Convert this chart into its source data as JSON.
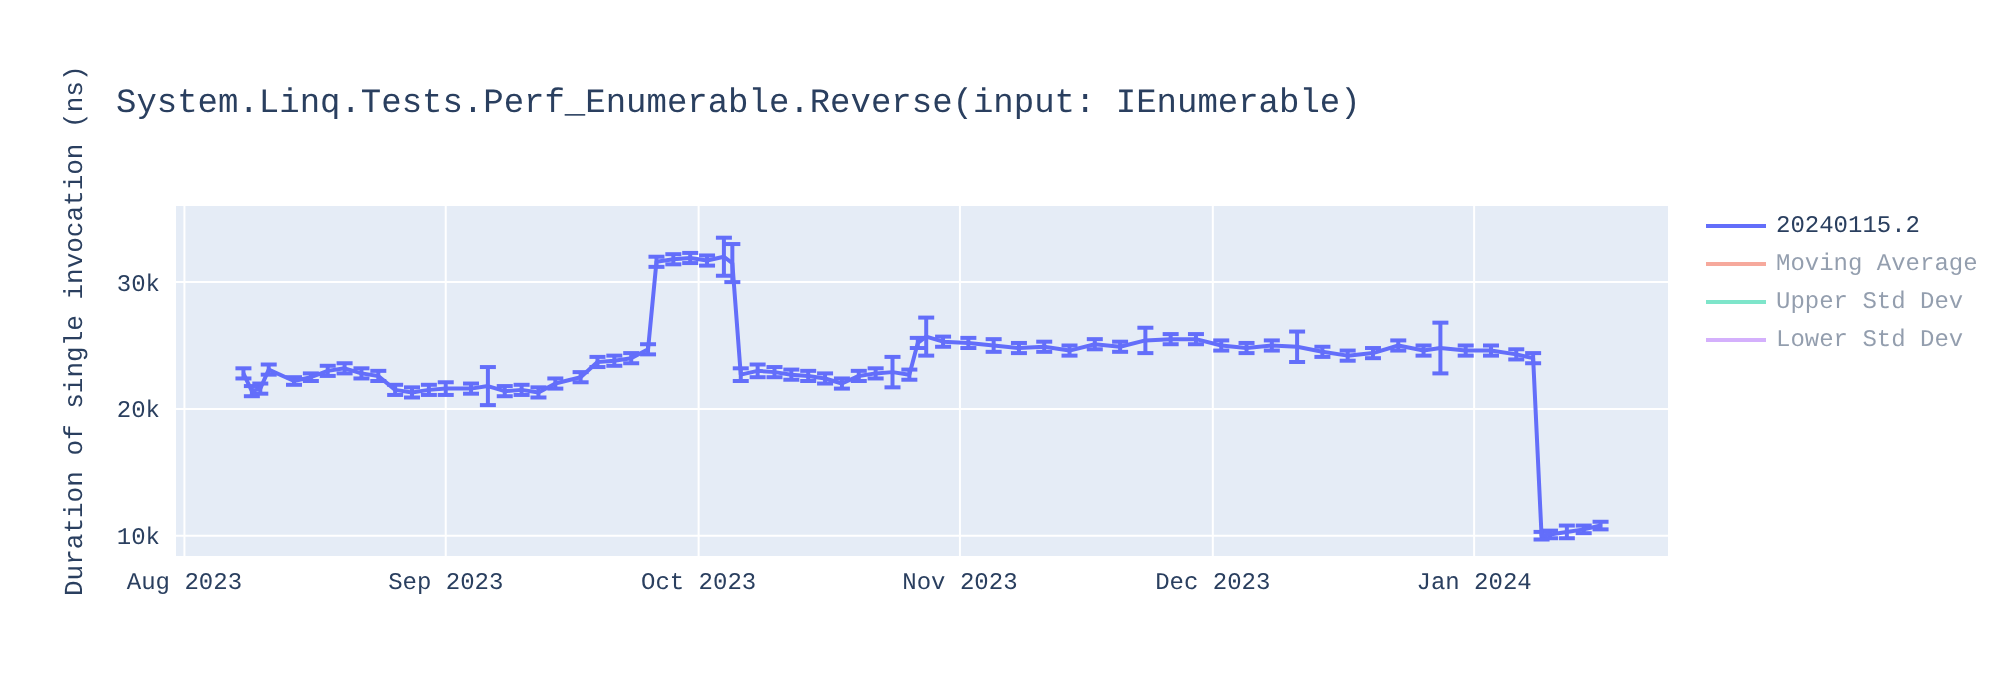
{
  "chart_data": {
    "type": "line",
    "title": "System.Linq.Tests.Perf_Enumerable.Reverse(input: IEnumerable)",
    "ylabel": "Duration of single invocation (ns)",
    "x": [
      "2023-08-08",
      "2023-08-09",
      "2023-08-10",
      "2023-08-11",
      "2023-08-14",
      "2023-08-16",
      "2023-08-18",
      "2023-08-20",
      "2023-08-22",
      "2023-08-24",
      "2023-08-26",
      "2023-08-28",
      "2023-08-30",
      "2023-09-01",
      "2023-09-04",
      "2023-09-06",
      "2023-09-08",
      "2023-09-10",
      "2023-09-12",
      "2023-09-14",
      "2023-09-17",
      "2023-09-19",
      "2023-09-21",
      "2023-09-23",
      "2023-09-25",
      "2023-09-26",
      "2023-09-28",
      "2023-09-30",
      "2023-10-02",
      "2023-10-04",
      "2023-10-05",
      "2023-10-06",
      "2023-10-08",
      "2023-10-10",
      "2023-10-12",
      "2023-10-14",
      "2023-10-16",
      "2023-10-18",
      "2023-10-20",
      "2023-10-22",
      "2023-10-24",
      "2023-10-26",
      "2023-10-27",
      "2023-10-28",
      "2023-10-30",
      "2023-11-02",
      "2023-11-05",
      "2023-11-08",
      "2023-11-11",
      "2023-11-14",
      "2023-11-17",
      "2023-11-20",
      "2023-11-23",
      "2023-11-26",
      "2023-11-29",
      "2023-12-02",
      "2023-12-05",
      "2023-12-08",
      "2023-12-11",
      "2023-12-14",
      "2023-12-17",
      "2023-12-20",
      "2023-12-23",
      "2023-12-26",
      "2023-12-28",
      "2023-12-31",
      "2024-01-03",
      "2024-01-06",
      "2024-01-08",
      "2024-01-09",
      "2024-01-10",
      "2024-01-12",
      "2024-01-14",
      "2024-01-16"
    ],
    "series": [
      {
        "name": "20240115.2",
        "color": "#636efa",
        "values": [
          22800,
          21400,
          21600,
          23100,
          22200,
          22500,
          23000,
          23200,
          22800,
          22600,
          21500,
          21300,
          21500,
          21600,
          21600,
          21800,
          21400,
          21500,
          21300,
          22000,
          22500,
          23700,
          23800,
          24000,
          24700,
          31600,
          31800,
          31900,
          31700,
          32000,
          31500,
          22700,
          23000,
          22900,
          22700,
          22600,
          22400,
          22000,
          22600,
          22800,
          22900,
          22700,
          25200,
          25700,
          25300,
          25200,
          25000,
          24800,
          24900,
          24600,
          25100,
          24900,
          25400,
          25500,
          25500,
          25000,
          24800,
          25000,
          24900,
          24500,
          24200,
          24400,
          25000,
          24600,
          24800,
          24600,
          24600,
          24300,
          24000,
          10000,
          10100,
          10300,
          10500,
          10800
        ],
        "errors": [
          400,
          400,
          400,
          400,
          300,
          300,
          400,
          400,
          400,
          400,
          400,
          400,
          400,
          500,
          400,
          1500,
          400,
          400,
          400,
          400,
          400,
          400,
          400,
          400,
          400,
          400,
          400,
          400,
          400,
          1500,
          1500,
          500,
          500,
          400,
          400,
          400,
          400,
          400,
          400,
          400,
          1200,
          400,
          400,
          1500,
          400,
          400,
          500,
          400,
          400,
          400,
          400,
          400,
          1000,
          400,
          400,
          400,
          400,
          400,
          1200,
          400,
          400,
          400,
          400,
          400,
          2000,
          400,
          400,
          400,
          400,
          300,
          300,
          500,
          300,
          300
        ]
      },
      {
        "name": "Moving Average",
        "color": "#ef553b",
        "values": [
          null,
          null,
          null,
          null,
          null,
          null,
          null,
          null,
          null,
          null,
          null,
          null,
          null,
          null,
          null,
          null,
          null,
          null,
          null,
          null,
          null,
          null,
          null,
          null,
          null,
          null,
          null,
          null,
          null,
          null,
          null,
          null,
          null,
          null,
          null,
          null,
          null,
          null,
          null,
          null,
          null,
          null,
          null,
          null,
          null,
          null,
          null,
          null,
          null,
          null,
          null,
          null,
          null,
          null,
          null,
          null,
          null,
          null,
          null,
          null,
          null,
          null,
          null,
          null,
          null,
          null,
          null,
          null,
          null,
          null,
          null,
          null,
          null,
          null
        ]
      },
      {
        "name": "Upper Std Dev",
        "color": "#00cc96",
        "values": [
          null,
          null,
          null,
          null,
          null,
          null,
          null,
          null,
          null,
          null,
          null,
          null,
          null,
          null,
          null,
          null,
          null,
          null,
          null,
          null,
          null,
          null,
          null,
          null,
          null,
          null,
          null,
          null,
          null,
          null,
          null,
          null,
          null,
          null,
          null,
          null,
          null,
          null,
          null,
          null,
          null,
          null,
          null,
          null,
          null,
          null,
          null,
          null,
          null,
          null,
          null,
          null,
          null,
          null,
          null,
          null,
          null,
          null,
          null,
          null,
          null,
          null,
          null,
          null,
          null,
          null,
          null,
          null,
          null,
          null,
          null,
          null,
          null,
          null
        ]
      },
      {
        "name": "Lower Std Dev",
        "color": "#ab63fa",
        "values": [
          null,
          null,
          null,
          null,
          null,
          null,
          null,
          null,
          null,
          null,
          null,
          null,
          null,
          null,
          null,
          null,
          null,
          null,
          null,
          null,
          null,
          null,
          null,
          null,
          null,
          null,
          null,
          null,
          null,
          null,
          null,
          null,
          null,
          null,
          null,
          null,
          null,
          null,
          null,
          null,
          null,
          null,
          null,
          null,
          null,
          null,
          null,
          null,
          null,
          null,
          null,
          null,
          null,
          null,
          null,
          null,
          null,
          null,
          null,
          null,
          null,
          null,
          null,
          null,
          null,
          null,
          null,
          null,
          null,
          null,
          null,
          null,
          null,
          null
        ]
      }
    ],
    "xlim": [
      "2023-07-31",
      "2024-01-24"
    ],
    "xticks": [
      {
        "value": "2023-08-01",
        "label": "Aug 2023"
      },
      {
        "value": "2023-09-01",
        "label": "Sep 2023"
      },
      {
        "value": "2023-10-01",
        "label": "Oct 2023"
      },
      {
        "value": "2023-11-01",
        "label": "Nov 2023"
      },
      {
        "value": "2023-12-01",
        "label": "Dec 2023"
      },
      {
        "value": "2024-01-01",
        "label": "Jan 2024"
      }
    ],
    "ylim": [
      8400,
      36000
    ],
    "yticks": [
      {
        "value": 10000,
        "label": "10k"
      },
      {
        "value": 20000,
        "label": "20k"
      },
      {
        "value": 30000,
        "label": "30k"
      }
    ],
    "grid": true,
    "legend": "top right",
    "marker": "none",
    "line_style": "solid"
  }
}
